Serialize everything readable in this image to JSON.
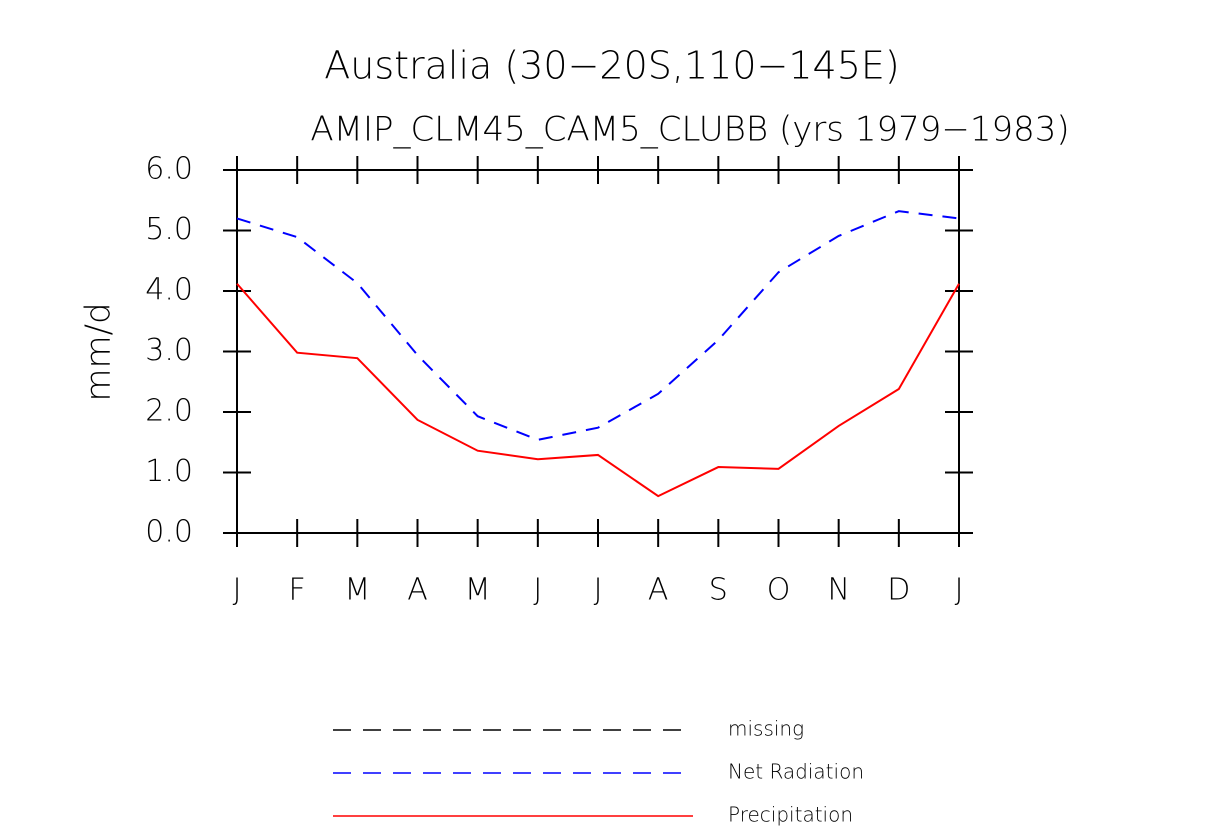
{
  "chart_data": {
    "type": "line",
    "title": "Australia (30−20S,110−145E)",
    "subtitle": "AMIP_CLM45_CAM5_CLUBB (yrs 1979−1983)",
    "y_label": "mm/d",
    "categories": [
      "J",
      "F",
      "M",
      "A",
      "M",
      "J",
      "J",
      "A",
      "S",
      "O",
      "N",
      "D",
      "J"
    ],
    "series": [
      {
        "name": "missing",
        "color": "#000000",
        "dash": true,
        "values": [
          null,
          null,
          null,
          null,
          null,
          null,
          null,
          null,
          null,
          null,
          null,
          null,
          null
        ]
      },
      {
        "name": "Net Radiation",
        "color": "#0000ff",
        "dash": true,
        "values": [
          5.2,
          4.89,
          4.13,
          2.94,
          1.93,
          1.54,
          1.74,
          2.3,
          3.19,
          4.31,
          4.91,
          5.32,
          5.2
        ]
      },
      {
        "name": "Precipitation",
        "color": "#ff0000",
        "dash": false,
        "values": [
          4.12,
          2.98,
          2.89,
          1.87,
          1.36,
          1.22,
          1.29,
          0.61,
          1.09,
          1.06,
          1.77,
          2.38,
          4.12
        ]
      }
    ],
    "ylim": [
      0,
      6
    ],
    "yticks": [
      {
        "value": 0,
        "label": "0.0"
      },
      {
        "value": 1,
        "label": "1.0"
      },
      {
        "value": 2,
        "label": "2.0"
      },
      {
        "value": 3,
        "label": "3.0"
      },
      {
        "value": 4,
        "label": "4.0"
      },
      {
        "value": 5,
        "label": "5.0"
      },
      {
        "value": 6,
        "label": "6.0"
      }
    ],
    "grid": false
  }
}
